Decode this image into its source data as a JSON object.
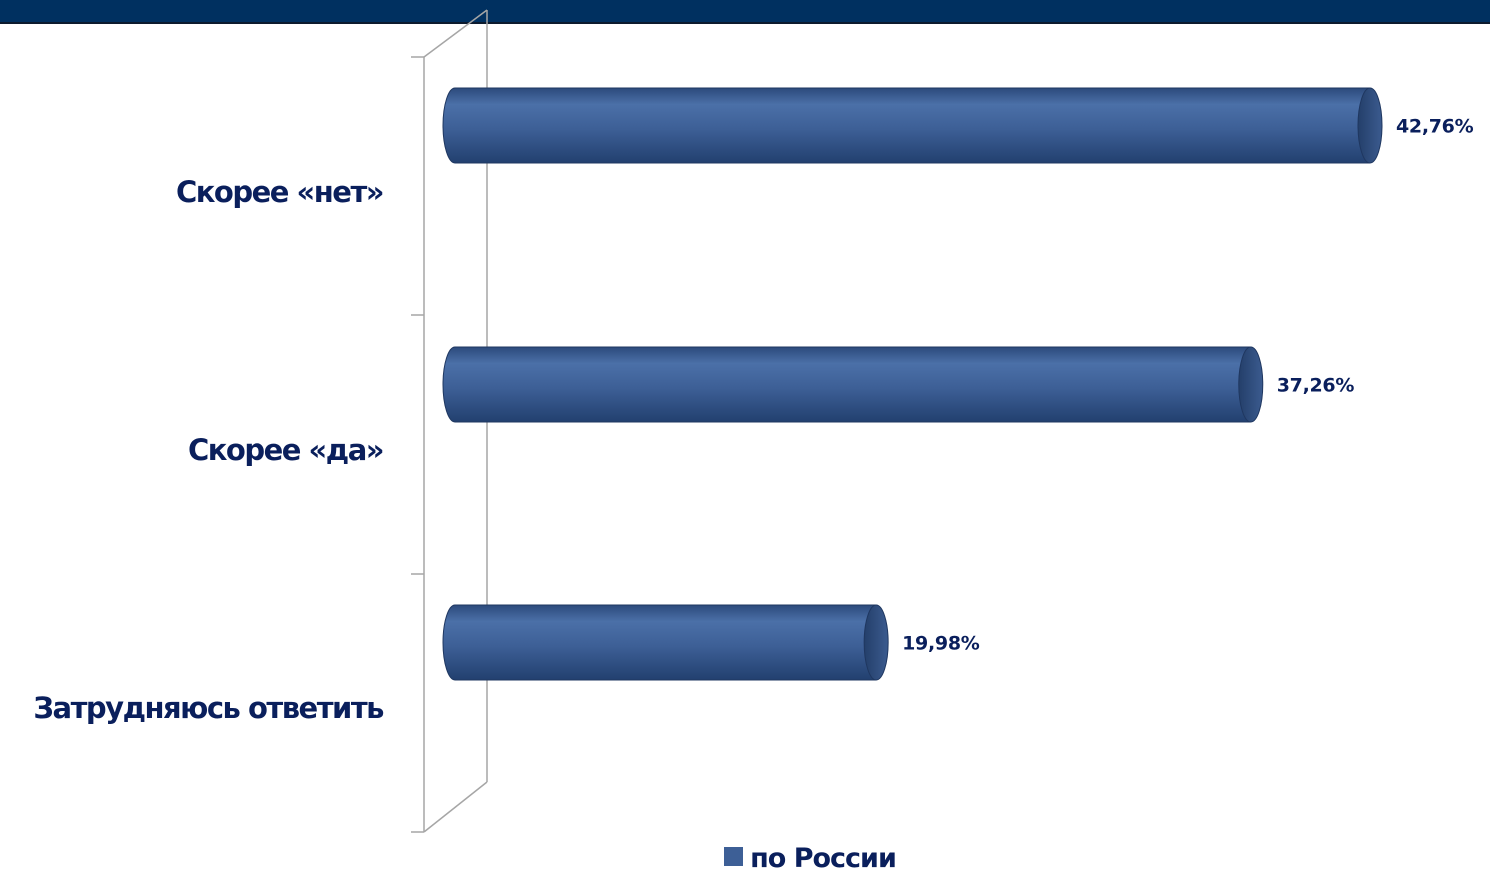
{
  "chart_data": {
    "type": "bar",
    "orientation": "horizontal",
    "categories": [
      "Скорее «нет»",
      "Скорее «да»",
      "Затрудняюсь ответить"
    ],
    "series": [
      {
        "name": "по России",
        "values": [
          42.76,
          37.26,
          19.98
        ],
        "labels": [
          "42,76%",
          "37,26%",
          "19,98%"
        ]
      }
    ],
    "value_unit": "%",
    "xlim": [
      0,
      43
    ],
    "grid": false,
    "legend_position": "bottom",
    "bar_color": "#3d5f96"
  },
  "legend": {
    "label": "по России"
  }
}
